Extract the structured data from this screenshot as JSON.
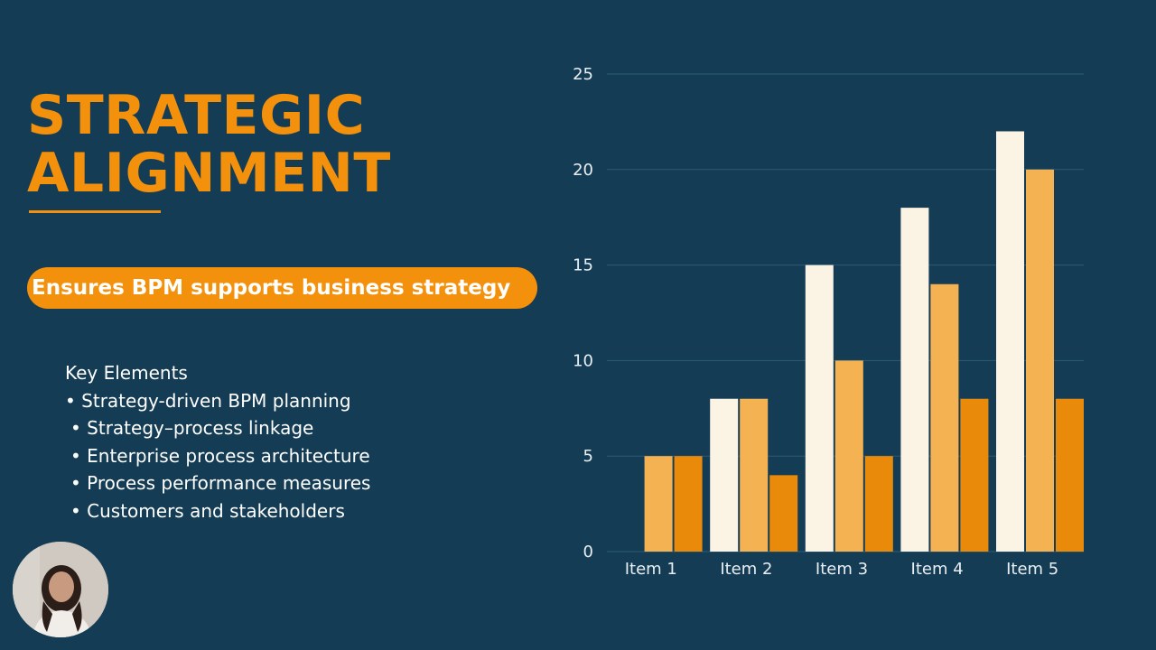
{
  "slide": {
    "title_line1": "STRATEGIC",
    "title_line2": "ALIGNMENT",
    "subtitle": "Ensures BPM supports business strategy",
    "key_elements": {
      "heading": "Key Elements",
      "items": [
        "• Strategy-driven BPM planning",
        "• Strategy–process linkage",
        "• Enterprise process architecture",
        "• Process performance measures",
        "• Customers and stakeholders"
      ]
    }
  },
  "colors": {
    "background": "#143d55",
    "accent": "#f4910c",
    "series_1": "#fbf3e4",
    "series_2": "#f5b253",
    "series_3": "#ea8a0b"
  },
  "chart_data": {
    "type": "bar",
    "title": "",
    "xlabel": "",
    "ylabel": "",
    "categories": [
      "Item 1",
      "Item 2",
      "Item 3",
      "Item 4",
      "Item 5"
    ],
    "series": [
      {
        "values": [
          null,
          8,
          15,
          18,
          22
        ]
      },
      {
        "values": [
          5,
          8,
          10,
          14,
          20
        ]
      },
      {
        "values": [
          5,
          4,
          5,
          8,
          8
        ]
      }
    ],
    "ylim": [
      0,
      25
    ],
    "yticks": [
      0,
      5,
      10,
      15,
      20,
      25
    ],
    "grid": true,
    "legend": "none"
  }
}
